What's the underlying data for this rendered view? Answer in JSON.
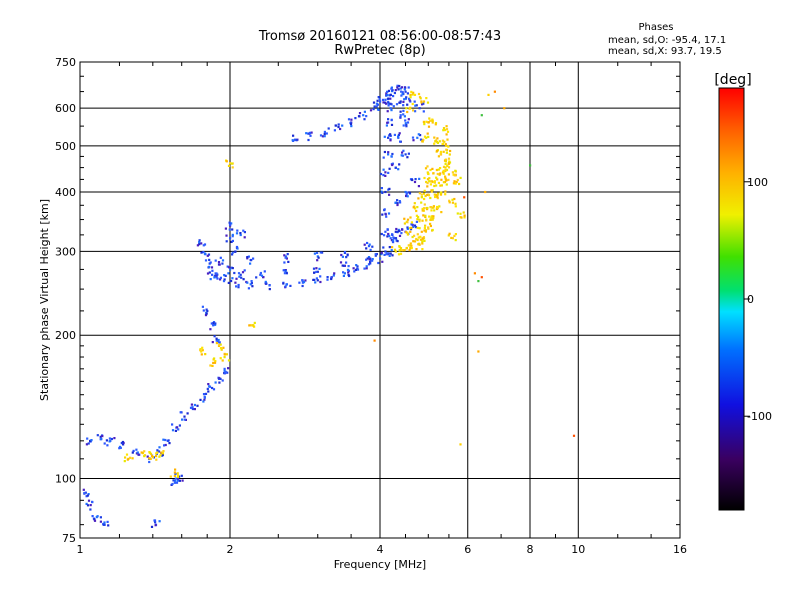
{
  "header": {
    "title_line1": "Tromsø 20160121 08:56:00-08:57:43",
    "title_line2": "RwPretec (8p)"
  },
  "stats": {
    "heading": "Phases",
    "line_o": "mean, sd,O: -95.4, 17.1",
    "line_x": "mean, sd,X:  93.7, 19.5"
  },
  "colors": {
    "o_mode": "#2040e0",
    "x_mode": "#f2d400",
    "grid": "#000000"
  },
  "chart_data": {
    "type": "scatter",
    "xlabel": "Frequency [MHz]",
    "ylabel": "Stationary phase Virtual Height [km]",
    "xscale": "log",
    "yscale": "log",
    "xlim": [
      1,
      16
    ],
    "ylim": [
      75,
      750
    ],
    "xticks": [
      1,
      2,
      4,
      6,
      8,
      10,
      16
    ],
    "yticks": [
      75,
      100,
      200,
      300,
      400,
      500,
      600,
      750
    ],
    "xgrid": [
      2,
      4,
      6,
      8,
      10
    ],
    "ygrid": [
      100,
      200,
      300,
      400,
      500,
      600
    ],
    "colorbar": {
      "label": "[deg]",
      "range": [
        -180,
        180
      ],
      "ticks": [
        100,
        0,
        -100
      ]
    },
    "series": [
      {
        "mode": "o",
        "phase_deg": -95.4,
        "points": [
          [
            1.05,
            120
          ],
          [
            1.1,
            121
          ],
          [
            1.15,
            120
          ],
          [
            1.22,
            118
          ],
          [
            1.3,
            113
          ],
          [
            1.38,
            110
          ],
          [
            1.44,
            114
          ],
          [
            1.5,
            120
          ],
          [
            1.56,
            128
          ],
          [
            1.62,
            135
          ],
          [
            1.7,
            140
          ],
          [
            1.78,
            148
          ],
          [
            1.84,
            155
          ],
          [
            1.9,
            162
          ],
          [
            1.95,
            170
          ],
          [
            1.02,
            93
          ],
          [
            1.05,
            88
          ],
          [
            1.08,
            83
          ],
          [
            1.12,
            80
          ],
          [
            1.42,
            80
          ],
          [
            1.55,
            98
          ],
          [
            1.58,
            101
          ],
          [
            1.75,
            312
          ],
          [
            1.78,
            297
          ],
          [
            1.82,
            283
          ],
          [
            1.84,
            268
          ],
          [
            1.88,
            265
          ],
          [
            1.95,
            262
          ],
          [
            2.05,
            258
          ],
          [
            2.2,
            256
          ],
          [
            2.4,
            255
          ],
          [
            2.6,
            256
          ],
          [
            2.8,
            258
          ],
          [
            3.0,
            261
          ],
          [
            3.2,
            265
          ],
          [
            3.4,
            270
          ],
          [
            3.6,
            276
          ],
          [
            3.8,
            282
          ],
          [
            4.0,
            290
          ],
          [
            4.2,
            297
          ],
          [
            1.9,
            285
          ],
          [
            2.0,
            275
          ],
          [
            2.1,
            268
          ],
          [
            2.3,
            268
          ],
          [
            2.6,
            270
          ],
          [
            3.0,
            272
          ],
          [
            3.4,
            280
          ],
          [
            3.8,
            292
          ],
          [
            4.1,
            300
          ],
          [
            2.0,
            320
          ],
          [
            2.05,
            300
          ],
          [
            2.2,
            288
          ],
          [
            2.6,
            290
          ],
          [
            3.0,
            293
          ],
          [
            3.4,
            298
          ],
          [
            3.8,
            308
          ],
          [
            4.2,
            320
          ],
          [
            4.3,
            330
          ],
          [
            2.0,
            340
          ],
          [
            2.1,
            325
          ],
          [
            2.7,
            515
          ],
          [
            2.9,
            525
          ],
          [
            3.1,
            535
          ],
          [
            3.3,
            548
          ],
          [
            3.5,
            560
          ],
          [
            3.7,
            580
          ],
          [
            3.9,
            605
          ],
          [
            4.0,
            620
          ],
          [
            4.1,
            625
          ],
          [
            4.2,
            640
          ],
          [
            4.3,
            655
          ],
          [
            4.4,
            660
          ],
          [
            4.5,
            650
          ],
          [
            4.1,
            330
          ],
          [
            4.1,
            360
          ],
          [
            4.1,
            400
          ],
          [
            4.1,
            440
          ],
          [
            4.15,
            480
          ],
          [
            4.15,
            520
          ],
          [
            4.15,
            560
          ],
          [
            4.2,
            600
          ],
          [
            4.2,
            640
          ],
          [
            4.3,
            320
          ],
          [
            4.3,
            380
          ],
          [
            4.3,
            450
          ],
          [
            4.35,
            520
          ],
          [
            4.4,
            580
          ],
          [
            4.4,
            620
          ],
          [
            4.5,
            330
          ],
          [
            4.5,
            400
          ],
          [
            4.5,
            480
          ],
          [
            4.55,
            560
          ],
          [
            4.6,
            620
          ],
          [
            4.7,
            340
          ],
          [
            4.7,
            420
          ],
          [
            4.75,
            520
          ],
          [
            4.8,
            600
          ],
          [
            1.85,
            210
          ],
          [
            1.88,
            195
          ],
          [
            1.8,
            225
          ]
        ]
      },
      {
        "mode": "x",
        "phase_deg": 93.7,
        "points": [
          [
            4.3,
            300
          ],
          [
            4.45,
            302
          ],
          [
            4.6,
            305
          ],
          [
            4.8,
            310
          ],
          [
            4.9,
            320
          ],
          [
            5.0,
            335
          ],
          [
            5.1,
            350
          ],
          [
            5.2,
            370
          ],
          [
            5.3,
            395
          ],
          [
            5.4,
            420
          ],
          [
            5.45,
            445
          ],
          [
            5.5,
            470
          ],
          [
            5.45,
            490
          ],
          [
            5.35,
            505
          ],
          [
            4.7,
            315
          ],
          [
            4.85,
            330
          ],
          [
            4.95,
            350
          ],
          [
            5.05,
            372
          ],
          [
            5.15,
            395
          ],
          [
            5.25,
            418
          ],
          [
            5.35,
            440
          ],
          [
            4.6,
            330
          ],
          [
            4.8,
            350
          ],
          [
            4.9,
            370
          ],
          [
            5.0,
            395
          ],
          [
            5.1,
            420
          ],
          [
            5.2,
            445
          ],
          [
            4.55,
            350
          ],
          [
            4.75,
            372
          ],
          [
            4.85,
            395
          ],
          [
            4.95,
            420
          ],
          [
            5.05,
            445
          ],
          [
            5.6,
            380
          ],
          [
            5.7,
            420
          ],
          [
            5.8,
            360
          ],
          [
            5.6,
            320
          ],
          [
            5.2,
            510
          ],
          [
            5.4,
            540
          ],
          [
            5.1,
            560
          ],
          [
            5.3,
            480
          ],
          [
            5.5,
            460
          ],
          [
            5.6,
            440
          ],
          [
            4.6,
            600
          ],
          [
            4.7,
            640
          ],
          [
            4.9,
            620
          ],
          [
            5.0,
            560
          ],
          [
            4.95,
            520
          ],
          [
            1.35,
            112
          ],
          [
            1.4,
            111
          ],
          [
            1.45,
            112
          ],
          [
            1.9,
            190
          ],
          [
            1.85,
            175
          ],
          [
            1.95,
            180
          ],
          [
            2.0,
            460
          ],
          [
            2.2,
            210
          ],
          [
            1.75,
            185
          ],
          [
            1.25,
            110
          ],
          [
            1.55,
            103
          ]
        ]
      },
      {
        "mode": "outlier",
        "points": [
          [
            3.9,
            195
          ],
          [
            6.3,
            185
          ],
          [
            6.3,
            260
          ],
          [
            6.4,
            265
          ],
          [
            6.6,
            640
          ],
          [
            6.8,
            650
          ],
          [
            7.1,
            600
          ],
          [
            8.0,
            455
          ],
          [
            9.8,
            123
          ],
          [
            5.8,
            118
          ],
          [
            6.2,
            270
          ],
          [
            6.5,
            400
          ],
          [
            6.4,
            580
          ],
          [
            5.9,
            390
          ]
        ]
      }
    ]
  }
}
